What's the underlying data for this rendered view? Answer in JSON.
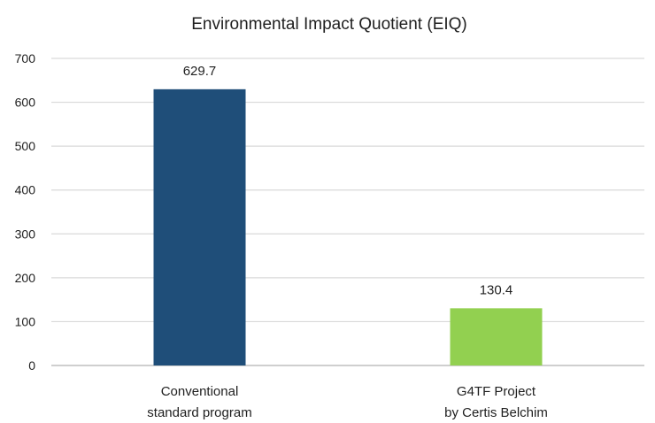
{
  "chart_data": {
    "type": "bar",
    "title": "Environmental Impact Quotient (EIQ)",
    "categories": [
      [
        "Conventional",
        "standard program"
      ],
      [
        "G4TF Project",
        "by Certis Belchim"
      ]
    ],
    "values": [
      629.7,
      130.4
    ],
    "data_labels": [
      "629.7",
      "130.4"
    ],
    "colors": [
      "#1f4e79",
      "#92d050"
    ],
    "ylim": [
      0,
      700
    ],
    "yticks": [
      0,
      100,
      200,
      300,
      400,
      500,
      600,
      700
    ],
    "xlabel": "",
    "ylabel": "",
    "grid": true,
    "legend": "none"
  }
}
